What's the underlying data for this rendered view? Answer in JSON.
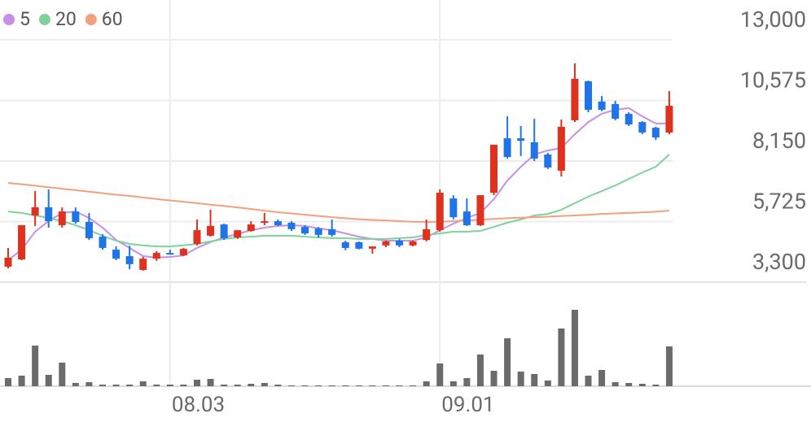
{
  "chart_data": {
    "type": "candlestick",
    "categories": [
      null,
      null,
      null,
      null,
      null,
      null,
      null,
      null,
      null,
      null,
      null,
      null,
      "08.03",
      null,
      null,
      null,
      null,
      null,
      null,
      null,
      null,
      null,
      null,
      null,
      null,
      null,
      null,
      null,
      null,
      null,
      null,
      null,
      "09.01",
      null,
      null,
      null,
      null,
      null,
      null,
      null,
      null,
      null,
      null,
      null,
      null,
      null,
      null,
      null,
      null,
      null
    ],
    "open": [
      3920,
      4210,
      5970,
      6300,
      5580,
      6130,
      5710,
      5120,
      4600,
      4340,
      3790,
      4240,
      4470,
      4370,
      4830,
      5160,
      5610,
      5090,
      5350,
      5680,
      5740,
      5680,
      5510,
      5450,
      5420,
      4900,
      4900,
      4640,
      4770,
      4960,
      4770,
      4990,
      5380,
      6650,
      6130,
      5580,
      6880,
      9060,
      9060,
      8900,
      8410,
      7760,
      9780,
      11340,
      10530,
      10430,
      10040,
      9710,
      9480,
      9290
    ],
    "high": [
      4670,
      5580,
      6950,
      7010,
      6290,
      6290,
      6070,
      5220,
      4730,
      4760,
      4310,
      4540,
      4600,
      4670,
      5810,
      6200,
      5640,
      5380,
      5740,
      6070,
      5810,
      5740,
      5580,
      5510,
      5810,
      4960,
      4930,
      4730,
      4960,
      5030,
      4960,
      5810,
      7010,
      6780,
      6650,
      6780,
      8800,
      9940,
      9550,
      9840,
      8480,
      9810,
      12060,
      11370,
      10750,
      10560,
      10100,
      9740,
      9520,
      10950
    ],
    "low": [
      3850,
      4180,
      5550,
      5480,
      5480,
      5640,
      4990,
      4600,
      4180,
      3820,
      3760,
      4150,
      4400,
      4340,
      4770,
      5120,
      4990,
      5030,
      5320,
      5580,
      5550,
      5350,
      5190,
      5090,
      5120,
      4580,
      4610,
      4440,
      4700,
      4700,
      4730,
      4930,
      5320,
      5810,
      5550,
      5550,
      6780,
      8250,
      8350,
      8150,
      7830,
      7530,
      9710,
      10100,
      10140,
      9780,
      9550,
      9220,
      8990,
      9220
    ],
    "close": [
      4280,
      5580,
      6300,
      5740,
      6130,
      5710,
      5060,
      4670,
      4240,
      4020,
      4240,
      4470,
      4440,
      4630,
      5380,
      5550,
      5060,
      5380,
      5610,
      5740,
      5580,
      5420,
      5250,
      5190,
      5190,
      4670,
      4640,
      4730,
      4930,
      4770,
      4930,
      5420,
      6880,
      5900,
      5580,
      6780,
      8800,
      8310,
      8960,
      8250,
      7890,
      9520,
      11440,
      10200,
      10200,
      9840,
      9610,
      9290,
      9090,
      10360
    ],
    "up_color": "#e0301e",
    "down_color": "#1f74e8",
    "ylim": [
      3300,
      13000
    ],
    "yticks": [
      {
        "value": 3300,
        "label": "3,300"
      },
      {
        "value": 5725,
        "label": "5,725"
      },
      {
        "value": 8150,
        "label": "8,150"
      },
      {
        "value": 10575,
        "label": "10,575"
      },
      {
        "value": 13000,
        "label": "13,000"
      }
    ],
    "grid": true,
    "moving_averages": [
      {
        "name": "5",
        "color": "#c98ee8",
        "values": [
          4180,
          4600,
          5320,
          5740,
          6070,
          6130,
          5870,
          5480,
          4990,
          4670,
          4340,
          4280,
          4310,
          4370,
          4670,
          4900,
          5090,
          5220,
          5380,
          5480,
          5550,
          5580,
          5550,
          5450,
          5380,
          5250,
          5120,
          5030,
          4960,
          4960,
          4960,
          5090,
          5380,
          5640,
          5870,
          6070,
          6620,
          7370,
          7920,
          8410,
          8570,
          8670,
          9220,
          9710,
          10040,
          10200,
          10270,
          9940,
          9650,
          9650
        ]
      },
      {
        "name": "20",
        "color": "#7fd39a",
        "values": [
          6130,
          6070,
          5970,
          5870,
          5740,
          5580,
          5380,
          5160,
          4960,
          4830,
          4770,
          4730,
          4730,
          4770,
          4830,
          4930,
          5030,
          5090,
          5120,
          5160,
          5160,
          5160,
          5120,
          5090,
          5060,
          5060,
          5030,
          5030,
          5030,
          5060,
          5090,
          5190,
          5250,
          5320,
          5320,
          5350,
          5510,
          5680,
          5810,
          5970,
          6030,
          6200,
          6460,
          6720,
          6950,
          7170,
          7430,
          7690,
          7920,
          8410
        ]
      },
      {
        "name": "60",
        "color": "#f2a07e",
        "values": [
          7270,
          7220,
          7160,
          7100,
          7040,
          6980,
          6920,
          6860,
          6800,
          6750,
          6690,
          6630,
          6570,
          6520,
          6460,
          6400,
          6350,
          6290,
          6230,
          6160,
          6100,
          6050,
          6000,
          5950,
          5900,
          5860,
          5820,
          5790,
          5770,
          5740,
          5720,
          5710,
          5720,
          5740,
          5770,
          5800,
          5830,
          5860,
          5880,
          5900,
          5920,
          5950,
          5970,
          6000,
          6030,
          6050,
          6070,
          6090,
          6120,
          6160
        ]
      }
    ],
    "volume": {
      "color": "#6b6b6b",
      "ylim": [
        0,
        100
      ],
      "values": [
        10,
        13,
        50,
        14,
        29,
        4,
        5,
        2,
        2,
        2,
        6,
        2,
        2,
        2,
        8,
        9,
        2,
        2,
        3,
        4,
        2,
        1,
        1,
        1,
        1,
        1,
        1,
        1,
        1,
        1,
        1,
        6,
        28,
        6,
        10,
        39,
        19,
        59,
        18,
        15,
        7,
        71,
        94,
        13,
        20,
        5,
        4,
        3,
        2,
        49
      ]
    }
  }
}
